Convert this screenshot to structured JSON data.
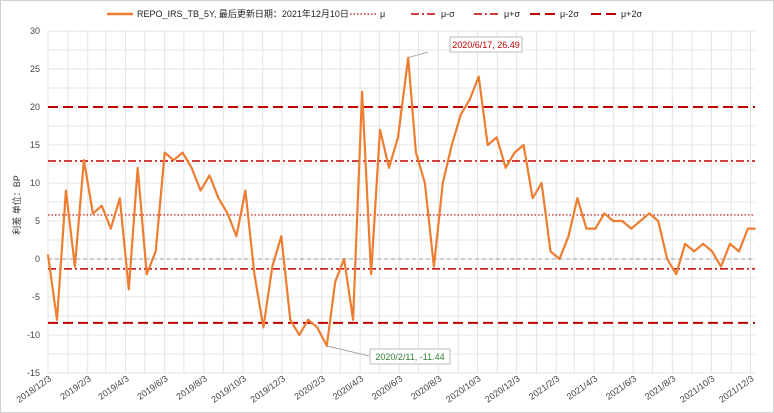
{
  "chart_data": {
    "type": "line",
    "ylabel": "利差 单位：BP",
    "ylim": [
      -15,
      30
    ],
    "yticks": [
      -15,
      -10,
      -5,
      0,
      5,
      10,
      15,
      20,
      25,
      30
    ],
    "x_tick_labels": [
      "2018/12/3",
      "2019/2/3",
      "2019/4/3",
      "2019/6/3",
      "2019/8/3",
      "2019/10/3",
      "2019/12/3",
      "2020/2/3",
      "2020/4/3",
      "2020/6/3",
      "2020/8/3",
      "2020/10/3",
      "2020/12/3",
      "2021/2/3",
      "2021/4/3",
      "2021/6/3",
      "2021/8/3",
      "2021/10/3",
      "2021/12/3"
    ],
    "grid": true,
    "legend_position": "top",
    "series": [
      {
        "name": "REPO_IRS_TB_5Y, 最后更新日期：2021年12月10日",
        "color": "#ED7D31",
        "style": "solid",
        "x": [
          "2018/12/3",
          "2018/12/17",
          "2018/12/31",
          "2019/1/14",
          "2019/1/28",
          "2019/2/11",
          "2019/2/25",
          "2019/3/11",
          "2019/3/25",
          "2019/4/8",
          "2019/4/22",
          "2019/5/6",
          "2019/5/20",
          "2019/6/3",
          "2019/6/17",
          "2019/7/1",
          "2019/7/15",
          "2019/7/29",
          "2019/8/12",
          "2019/8/26",
          "2019/9/9",
          "2019/9/23",
          "2019/10/7",
          "2019/10/21",
          "2019/11/4",
          "2019/11/18",
          "2019/12/2",
          "2019/12/16",
          "2019/12/30",
          "2020/1/13",
          "2020/1/27",
          "2020/2/11",
          "2020/2/24",
          "2020/3/9",
          "2020/3/23",
          "2020/4/6",
          "2020/4/20",
          "2020/5/4",
          "2020/5/18",
          "2020/6/1",
          "2020/6/17",
          "2020/6/29",
          "2020/7/13",
          "2020/7/27",
          "2020/8/10",
          "2020/8/24",
          "2020/9/7",
          "2020/9/21",
          "2020/10/5",
          "2020/10/19",
          "2020/11/2",
          "2020/11/16",
          "2020/11/30",
          "2020/12/14",
          "2020/12/28",
          "2021/1/11",
          "2021/1/25",
          "2021/2/8",
          "2021/2/22",
          "2021/3/8",
          "2021/3/22",
          "2021/4/5",
          "2021/4/19",
          "2021/5/3",
          "2021/5/17",
          "2021/5/31",
          "2021/6/14",
          "2021/6/28",
          "2021/7/12",
          "2021/7/26",
          "2021/8/9",
          "2021/8/23",
          "2021/9/6",
          "2021/9/20",
          "2021/10/4",
          "2021/10/18",
          "2021/11/1",
          "2021/11/15",
          "2021/11/29",
          "2021/12/10"
        ],
        "values": [
          0.5,
          -8,
          9,
          -1,
          13,
          6,
          7,
          4,
          8,
          -4,
          12,
          -2,
          1,
          14,
          13,
          14,
          12,
          9,
          11,
          8,
          6,
          3,
          9,
          -2,
          -9,
          -1,
          3,
          -8,
          -10,
          -8,
          -9,
          -11.44,
          -3,
          0,
          -8,
          22,
          -2,
          17,
          12,
          16,
          26.49,
          14,
          10,
          -1,
          10,
          15,
          19,
          21,
          24,
          15,
          16,
          12,
          14,
          15,
          8,
          10,
          1,
          0,
          3,
          8,
          4,
          4,
          6,
          5,
          5,
          4,
          5,
          6,
          5,
          0,
          -2,
          2,
          1,
          2,
          1,
          -1,
          2,
          1,
          4,
          4
        ]
      },
      {
        "name": "μ",
        "value": 5.8,
        "color": "#C00000",
        "style": "dotted"
      },
      {
        "name": "μ-σ",
        "value": -1.3,
        "color": "#C00000",
        "style": "dashdot"
      },
      {
        "name": "μ+σ",
        "value": 12.9,
        "color": "#C00000",
        "style": "dashdot"
      },
      {
        "name": "μ-2σ",
        "value": -8.4,
        "color": "#C00000",
        "style": "dashed"
      },
      {
        "name": "μ+2σ",
        "value": 20.0,
        "color": "#C00000",
        "style": "dashed"
      }
    ],
    "annotations": [
      {
        "label": "2020/6/17, 26.49",
        "x": "2020/6/17",
        "y": 26.49,
        "color": "#C00000"
      },
      {
        "label": "2020/2/11, -11.44",
        "x": "2020/2/11",
        "y": -11.44,
        "color": "#2E7D32"
      }
    ]
  }
}
